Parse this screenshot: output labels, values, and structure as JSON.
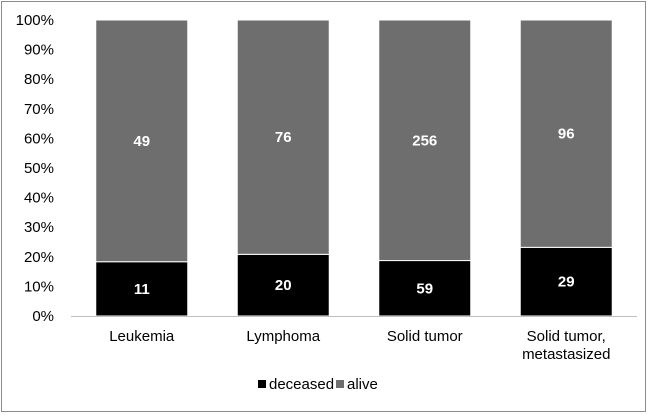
{
  "chart_data": {
    "type": "bar",
    "stacked": "100%",
    "categories": [
      [
        "Leukemia"
      ],
      [
        "Lymphoma"
      ],
      [
        "Solid tumor"
      ],
      [
        "Solid tumor,",
        "metastasized"
      ]
    ],
    "series": [
      {
        "name": "deceased",
        "values": [
          11,
          20,
          59,
          29
        ],
        "color": "#000000"
      },
      {
        "name": "alive",
        "values": [
          49,
          76,
          256,
          96
        ],
        "color": "#6e6e6e"
      }
    ],
    "yticks": [
      "0%",
      "10%",
      "20%",
      "30%",
      "40%",
      "50%",
      "60%",
      "70%",
      "80%",
      "90%",
      "100%"
    ],
    "ylim": [
      0,
      100
    ],
    "grid": false,
    "legend": "bottom"
  }
}
